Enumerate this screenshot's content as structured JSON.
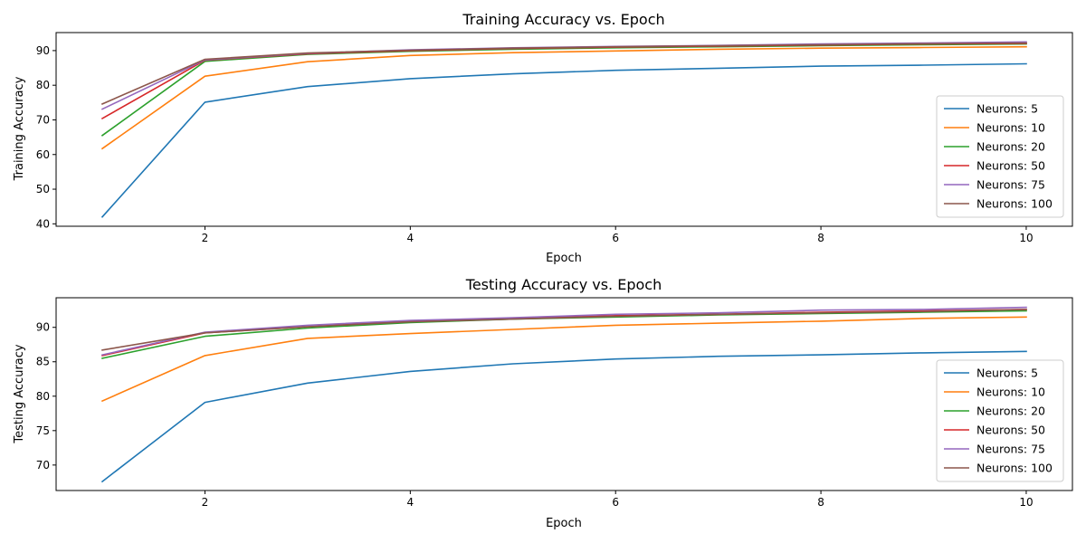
{
  "colors": {
    "series": [
      "#1f77b4",
      "#ff7f0e",
      "#2ca02c",
      "#d62728",
      "#9467bd",
      "#8c564b"
    ],
    "axes": "#000000",
    "background": "#ffffff",
    "legend_border": "#cccccc"
  },
  "chart_data": [
    {
      "type": "line",
      "title": "Training Accuracy vs. Epoch",
      "xlabel": "Epoch",
      "ylabel": "Training Accuracy",
      "x": [
        1,
        2,
        3,
        4,
        5,
        6,
        7,
        8,
        9,
        10
      ],
      "xlim": [
        0.55,
        10.45
      ],
      "ylim": [
        39.3,
        95.2
      ],
      "xticks": [
        2,
        4,
        6,
        8,
        10
      ],
      "yticks": [
        40,
        50,
        60,
        70,
        80,
        90
      ],
      "grid": false,
      "legend_position": "lower-right",
      "series": [
        {
          "name": "Neurons: 5",
          "values": [
            42.0,
            75.1,
            79.6,
            81.9,
            83.3,
            84.3,
            84.9,
            85.5,
            85.8,
            86.2
          ]
        },
        {
          "name": "Neurons: 10",
          "values": [
            61.7,
            82.6,
            86.8,
            88.6,
            89.4,
            89.9,
            90.4,
            90.7,
            90.9,
            91.1
          ]
        },
        {
          "name": "Neurons: 20",
          "values": [
            65.5,
            86.9,
            88.9,
            89.8,
            90.4,
            90.8,
            91.1,
            91.4,
            91.7,
            91.9
          ]
        },
        {
          "name": "Neurons: 50",
          "values": [
            70.4,
            87.2,
            89.1,
            90.0,
            90.6,
            91.0,
            91.3,
            91.6,
            91.9,
            92.1
          ]
        },
        {
          "name": "Neurons: 75",
          "values": [
            73.1,
            87.3,
            89.2,
            90.2,
            90.8,
            91.2,
            91.5,
            91.9,
            92.2,
            92.5
          ]
        },
        {
          "name": "Neurons: 100",
          "values": [
            74.6,
            87.5,
            89.3,
            90.1,
            90.7,
            91.1,
            91.4,
            91.7,
            92.0,
            92.2
          ]
        }
      ]
    },
    {
      "type": "line",
      "title": "Testing Accuracy vs. Epoch",
      "xlabel": "Epoch",
      "ylabel": "Testing Accuracy",
      "x": [
        1,
        2,
        3,
        4,
        5,
        6,
        7,
        8,
        9,
        10
      ],
      "xlim": [
        0.55,
        10.45
      ],
      "ylim": [
        66.3,
        94.3
      ],
      "xticks": [
        2,
        4,
        6,
        8,
        10
      ],
      "yticks": [
        70,
        75,
        80,
        85,
        90
      ],
      "grid": false,
      "legend_position": "lower-right",
      "series": [
        {
          "name": "Neurons: 5",
          "values": [
            67.6,
            79.1,
            81.9,
            83.6,
            84.7,
            85.4,
            85.8,
            86.0,
            86.3,
            86.5
          ]
        },
        {
          "name": "Neurons: 10",
          "values": [
            79.3,
            85.9,
            88.4,
            89.1,
            89.7,
            90.3,
            90.6,
            90.9,
            91.3,
            91.5
          ]
        },
        {
          "name": "Neurons: 20",
          "values": [
            85.5,
            88.7,
            89.9,
            90.7,
            91.2,
            91.5,
            91.8,
            92.0,
            92.2,
            92.4
          ]
        },
        {
          "name": "Neurons: 50",
          "values": [
            85.9,
            89.2,
            90.1,
            90.9,
            91.3,
            91.7,
            91.9,
            92.2,
            92.4,
            92.6
          ]
        },
        {
          "name": "Neurons: 75",
          "values": [
            86.0,
            89.3,
            90.3,
            91.0,
            91.4,
            91.9,
            92.1,
            92.5,
            92.6,
            92.9
          ]
        },
        {
          "name": "Neurons: 100",
          "values": [
            86.7,
            89.2,
            90.1,
            90.8,
            91.2,
            91.6,
            91.9,
            92.1,
            92.3,
            92.6
          ]
        }
      ]
    }
  ]
}
